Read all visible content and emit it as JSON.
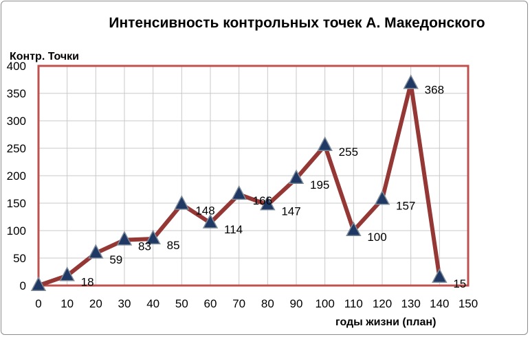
{
  "chart_data": {
    "type": "line",
    "title": "Интенсивность контрольных точек А. Македонского",
    "ylabel": "Контр. Точки",
    "xlabel": "годы жизни  (план)",
    "xlim": [
      0,
      150
    ],
    "ylim": [
      0,
      400
    ],
    "x_ticks": [
      "0",
      "10",
      "20",
      "30",
      "40",
      "50",
      "60",
      "70",
      "80",
      "90",
      "100",
      "110",
      "120",
      "130",
      "140",
      "150"
    ],
    "y_ticks": [
      "0",
      "50",
      "100",
      "150",
      "200",
      "250",
      "300",
      "350",
      "400"
    ],
    "grid": true,
    "legend": "none",
    "series": [
      {
        "x": [
          0,
          10,
          20,
          30,
          40,
          50,
          60,
          70,
          80,
          90,
          100,
          110,
          120,
          130,
          140
        ],
        "values": [
          0,
          18,
          59,
          83,
          85,
          148,
          114,
          166,
          147,
          195,
          255,
          100,
          157,
          368,
          15
        ],
        "labels": [
          "",
          "18",
          "59",
          "83",
          "85",
          "148",
          "114",
          "166",
          "147",
          "195",
          "255",
          "100",
          "157",
          "368",
          "15"
        ],
        "line_color": "#953735",
        "marker": "triangle",
        "marker_color": "#1f3864"
      }
    ],
    "plot_border_color": "#c0504d"
  }
}
